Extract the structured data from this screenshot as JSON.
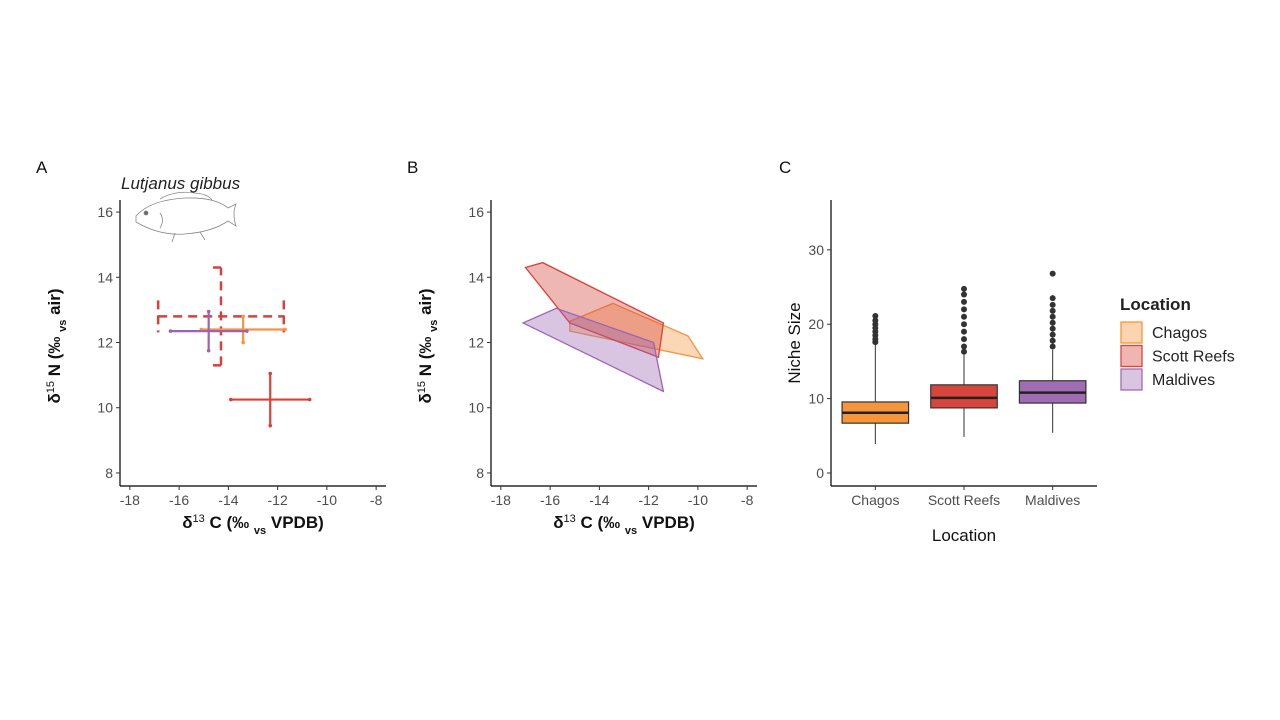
{
  "chart_data": [
    {
      "type": "errorbar",
      "panel_label": "A",
      "annotation": "Lutjanus gibbus",
      "xlabel": [
        {
          "text": "δ"
        },
        {
          "text": "13",
          "style": "sup"
        },
        {
          "text": " C (‰ "
        },
        {
          "text": "vs",
          "style": "sub"
        },
        {
          "text": " VPDB)"
        }
      ],
      "ylabel": [
        {
          "text": "δ"
        },
        {
          "text": "15",
          "style": "sup"
        },
        {
          "text": " N (‰ "
        },
        {
          "text": "vs",
          "style": "sub"
        },
        {
          "text": " air)"
        }
      ],
      "xlim": [
        -18.4,
        -7.6
      ],
      "ylim": [
        7.6,
        16.37
      ],
      "xticks": [
        -18,
        -16,
        -14,
        -12,
        -10,
        -8
      ],
      "yticks": [
        8,
        10,
        12,
        14,
        16
      ],
      "series": [
        {
          "color": "#d6423a",
          "dashed": true,
          "x": -14.3,
          "y": 12.8,
          "xerr": 2.55,
          "yerr": 1.5
        },
        {
          "color": "#f4953f",
          "dashed": false,
          "x": -13.4,
          "y": 12.4,
          "xerr": 1.7,
          "yerr": 0.4
        },
        {
          "color": "#9b64b3",
          "dashed": false,
          "x": -14.8,
          "y": 12.35,
          "xerr": 1.55,
          "yerr": 0.6
        },
        {
          "color": "#d6423a",
          "dashed": false,
          "x": -12.3,
          "y": 10.25,
          "xerr": 1.6,
          "yerr": 0.8
        }
      ]
    },
    {
      "type": "polygon",
      "panel_label": "B",
      "xlabel": [
        {
          "text": "δ"
        },
        {
          "text": "13",
          "style": "sup"
        },
        {
          "text": " C (‰ "
        },
        {
          "text": "vs",
          "style": "sub"
        },
        {
          "text": " VPDB)"
        }
      ],
      "ylabel": [
        {
          "text": "δ"
        },
        {
          "text": "15",
          "style": "sup"
        },
        {
          "text": " N (‰ "
        },
        {
          "text": "vs",
          "style": "sub"
        },
        {
          "text": " air)"
        }
      ],
      "xlim": [
        -18.4,
        -7.6
      ],
      "ylim": [
        7.6,
        16.37
      ],
      "xticks": [
        -18,
        -16,
        -14,
        -12,
        -10,
        -8
      ],
      "yticks": [
        8,
        10,
        12,
        14,
        16
      ],
      "series": [
        {
          "color": "#f4953f",
          "x": [
            -15.2,
            -13.45,
            -10.4,
            -9.8,
            -15.2
          ],
          "y": [
            12.65,
            13.2,
            12.2,
            11.5,
            12.35
          ]
        },
        {
          "color": "#d6423a",
          "x": [
            -17.0,
            -16.3,
            -11.4,
            -11.6,
            -15.2
          ],
          "y": [
            14.3,
            14.45,
            12.6,
            11.55,
            12.6
          ]
        },
        {
          "color": "#9b64b3",
          "x": [
            -17.1,
            -15.75,
            -11.8,
            -11.4
          ],
          "y": [
            12.6,
            13.05,
            12.0,
            10.5
          ]
        }
      ]
    },
    {
      "type": "box",
      "panel_label": "C",
      "xlabel": "Location",
      "ylabel": "Niche Size",
      "categories": [
        "Chagos",
        "Scott Reefs",
        "Maldives"
      ],
      "colors": [
        "#f7953a",
        "#d8453d",
        "#a06cb4"
      ],
      "ylim": [
        -1.75,
        36.7
      ],
      "yticks": [
        0,
        10,
        20,
        30
      ],
      "boxes": [
        {
          "min": 3.9,
          "q1": 6.7,
          "median": 8.1,
          "q3": 9.55,
          "max": 17.2,
          "outliers": [
            17.6,
            18.0,
            18.5,
            19.0,
            19.5,
            20.0,
            20.5,
            21.1
          ]
        },
        {
          "min": 4.85,
          "q1": 8.75,
          "median": 10.1,
          "q3": 11.85,
          "max": 15.9,
          "outliers": [
            16.3,
            17.0,
            18.0,
            19.0,
            20.0,
            21.0,
            22.0,
            23.0,
            24.0,
            24.75
          ]
        },
        {
          "min": 5.4,
          "q1": 9.4,
          "median": 10.8,
          "q3": 12.4,
          "max": 16.55,
          "outliers": [
            17.0,
            17.8,
            18.6,
            19.4,
            20.2,
            21.0,
            21.8,
            22.6,
            23.5,
            26.8
          ]
        }
      ],
      "legend": {
        "title": "Location",
        "entries": [
          "Chagos",
          "Scott Reefs",
          "Maldives"
        ]
      }
    }
  ]
}
